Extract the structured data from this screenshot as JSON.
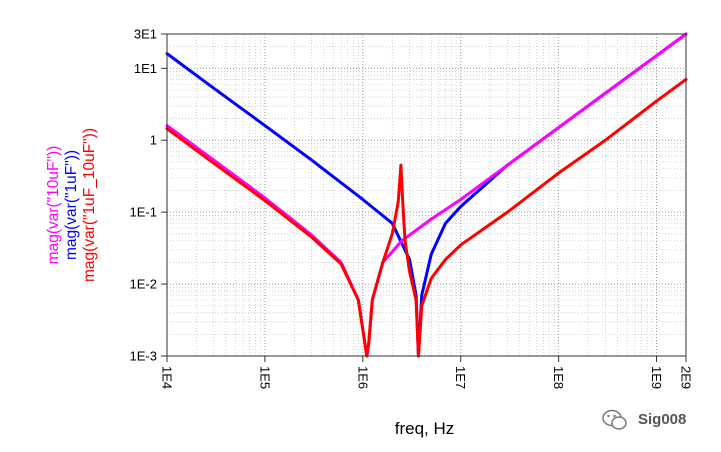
{
  "chart_data": {
    "type": "line",
    "xlabel": "freq, Hz",
    "x_scale": "log",
    "y_scale": "log",
    "xlim": [
      10000,
      2000000000
    ],
    "ylim": [
      0.001,
      30
    ],
    "x_ticks": [
      {
        "value": 10000,
        "label": "1E4"
      },
      {
        "value": 100000,
        "label": "1E5"
      },
      {
        "value": 1000000,
        "label": "1E6"
      },
      {
        "value": 10000000,
        "label": "1E7"
      },
      {
        "value": 100000000,
        "label": "1E8"
      },
      {
        "value": 1000000000,
        "label": "1E9"
      },
      {
        "value": 2000000000,
        "label": "2E9"
      }
    ],
    "y_ticks": [
      {
        "value": 30,
        "label": "3E1"
      },
      {
        "value": 10,
        "label": "1E1"
      },
      {
        "value": 1,
        "label": "1"
      },
      {
        "value": 0.1,
        "label": "1E-1"
      },
      {
        "value": 0.01,
        "label": "1E-2"
      },
      {
        "value": 0.001,
        "label": "1E-3"
      }
    ],
    "grid": true,
    "series": [
      {
        "name": "mag(var(\"10uF\"))",
        "color": "#ff00ff",
        "x": [
          10000,
          30000,
          100000,
          300000,
          600000,
          900000,
          1100000,
          1150000,
          1250000,
          1600000,
          2500000,
          5000000,
          10000000,
          30000000,
          100000000,
          300000000,
          1000000000,
          2000000000
        ],
        "y": [
          1.6,
          0.53,
          0.158,
          0.048,
          0.02,
          0.006,
          0.001,
          0.0015,
          0.006,
          0.02,
          0.04,
          0.08,
          0.15,
          0.45,
          1.5,
          4.5,
          15,
          30
        ]
      },
      {
        "name": "mag(var(\"1uF\"))",
        "color": "#0000ff",
        "x": [
          10000,
          30000,
          100000,
          300000,
          1000000,
          2000000,
          3000000,
          3500000,
          3700000,
          4000000,
          5000000,
          7000000,
          10000000,
          30000000,
          100000000,
          300000000,
          1000000000,
          2000000000
        ],
        "y": [
          16,
          5.3,
          1.6,
          0.53,
          0.15,
          0.07,
          0.022,
          0.007,
          0.001,
          0.007,
          0.026,
          0.07,
          0.12,
          0.45,
          1.5,
          4.5,
          15,
          30
        ]
      },
      {
        "name": "mag(var(\"1uF_10uF\"))",
        "color": "#ff0000",
        "x": [
          10000,
          30000,
          100000,
          300000,
          600000,
          900000,
          1100000,
          1150000,
          1250000,
          1600000,
          2000000,
          2300000,
          2450000,
          2550000,
          2700000,
          3000000,
          3500000,
          3700000,
          4000000,
          5000000,
          7000000,
          10000000,
          30000000,
          100000000,
          300000000,
          1000000000,
          2000000000
        ],
        "y": [
          1.45,
          0.48,
          0.145,
          0.045,
          0.019,
          0.006,
          0.001,
          0.0015,
          0.006,
          0.02,
          0.05,
          0.14,
          0.45,
          0.15,
          0.04,
          0.015,
          0.006,
          0.001,
          0.005,
          0.012,
          0.022,
          0.035,
          0.1,
          0.35,
          1.0,
          3.5,
          7
        ]
      }
    ]
  },
  "watermark": {
    "text": "Sig008",
    "icon": "wechat-icon"
  }
}
